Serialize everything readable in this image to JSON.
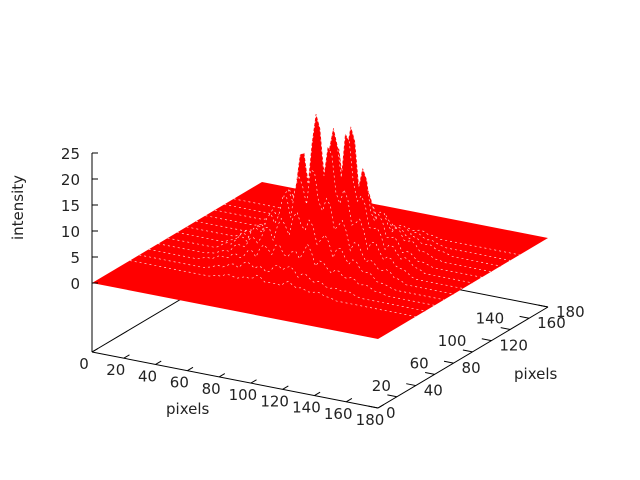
{
  "chart_data": {
    "type": "surface3d",
    "title": "",
    "xlabel": "pixels",
    "ylabel": "pixels",
    "zlabel": "intensity",
    "xlim": [
      0,
      180
    ],
    "ylim": [
      0,
      180
    ],
    "zlim": [
      0,
      25
    ],
    "xticks": [
      "0",
      "20",
      "40",
      "60",
      "80",
      "100",
      "120",
      "140",
      "160",
      "180"
    ],
    "yticks": [
      "0",
      "20",
      "40",
      "60",
      "80",
      "100",
      "120",
      "140",
      "160",
      "180"
    ],
    "zticks": [
      "0",
      "5",
      "10",
      "15",
      "20",
      "25"
    ],
    "surface_color": "#ff0000",
    "grid_step": 10,
    "z": [
      [
        0,
        0,
        0,
        0,
        0,
        0,
        0,
        0,
        0,
        0,
        0,
        0,
        0,
        0,
        0,
        0,
        0,
        0,
        0
      ],
      [
        0,
        0,
        0,
        0,
        0,
        0,
        0,
        0,
        0,
        0,
        0,
        0,
        0,
        0,
        0,
        0,
        0,
        0,
        0
      ],
      [
        0,
        0,
        0,
        0,
        0,
        0,
        0,
        0,
        0,
        0,
        0,
        0,
        0,
        0,
        0,
        0,
        0,
        0,
        0
      ],
      [
        0,
        0,
        0,
        0,
        0,
        0,
        0,
        0,
        0,
        0,
        0,
        0,
        0,
        0,
        0,
        0,
        0,
        0,
        0
      ],
      [
        0,
        0,
        0,
        0,
        0,
        0,
        1,
        1,
        2,
        1,
        2,
        1,
        1,
        0,
        0,
        0,
        0,
        0,
        0
      ],
      [
        0,
        0,
        0,
        0,
        0,
        1,
        2,
        3,
        2,
        4,
        3,
        2,
        1,
        1,
        0,
        0,
        0,
        0,
        0
      ],
      [
        0,
        0,
        0,
        0,
        1,
        2,
        3,
        5,
        6,
        5,
        7,
        4,
        3,
        2,
        1,
        0,
        0,
        0,
        0
      ],
      [
        0,
        0,
        0,
        0,
        1,
        3,
        5,
        8,
        10,
        12,
        9,
        7,
        5,
        3,
        1,
        0,
        0,
        0,
        0
      ],
      [
        0,
        0,
        0,
        0,
        2,
        4,
        7,
        11,
        16,
        20,
        14,
        10,
        6,
        3,
        2,
        0,
        0,
        0,
        0
      ],
      [
        0,
        0,
        0,
        0,
        2,
        4,
        8,
        13,
        22,
        30,
        18,
        12,
        7,
        4,
        2,
        0,
        0,
        0,
        0
      ],
      [
        0,
        0,
        0,
        0,
        2,
        4,
        8,
        14,
        19,
        24,
        26,
        13,
        7,
        4,
        2,
        0,
        0,
        0,
        0
      ],
      [
        0,
        0,
        0,
        0,
        1,
        3,
        7,
        12,
        16,
        21,
        25,
        11,
        6,
        3,
        1,
        0,
        0,
        0,
        0
      ],
      [
        0,
        0,
        0,
        0,
        1,
        3,
        5,
        9,
        12,
        14,
        12,
        8,
        5,
        3,
        1,
        0,
        0,
        0,
        0
      ],
      [
        0,
        0,
        0,
        0,
        1,
        2,
        3,
        5,
        7,
        8,
        7,
        5,
        3,
        2,
        1,
        0,
        0,
        0,
        0
      ],
      [
        0,
        0,
        0,
        0,
        0,
        1,
        2,
        3,
        4,
        4,
        3,
        3,
        2,
        1,
        0,
        0,
        0,
        0,
        0
      ],
      [
        0,
        0,
        0,
        0,
        0,
        0,
        1,
        1,
        2,
        2,
        1,
        1,
        1,
        0,
        0,
        0,
        0,
        0,
        0
      ],
      [
        0,
        0,
        0,
        0,
        0,
        0,
        0,
        0,
        0,
        0,
        0,
        0,
        0,
        0,
        0,
        0,
        0,
        0,
        0
      ],
      [
        0,
        0,
        0,
        0,
        0,
        0,
        0,
        0,
        0,
        0,
        0,
        0,
        0,
        0,
        0,
        0,
        0,
        0,
        0
      ],
      [
        0,
        0,
        0,
        0,
        0,
        0,
        0,
        0,
        0,
        0,
        0,
        0,
        0,
        0,
        0,
        0,
        0,
        0,
        0
      ]
    ]
  }
}
